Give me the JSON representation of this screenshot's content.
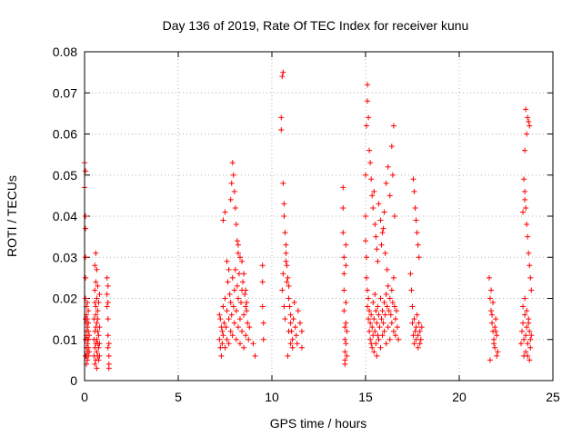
{
  "chart_data": {
    "type": "scatter",
    "title": "Day 136 of 2019, Rate Of TEC Index for receiver kunu",
    "xlabel": "GPS time / hours",
    "ylabel": "ROTI / TECUs",
    "xlim": [
      0,
      25
    ],
    "ylim": [
      0,
      0.08
    ],
    "x_ticks": [
      "0",
      "5",
      "10",
      "15",
      "20",
      "25"
    ],
    "y_ticks": [
      "0",
      "0.01",
      "0.02",
      "0.03",
      "0.04",
      "0.05",
      "0.06",
      "0.07",
      "0.08"
    ],
    "x_tick_values": [
      0,
      5,
      10,
      15,
      20,
      25
    ],
    "y_tick_values": [
      0,
      0.01,
      0.02,
      0.03,
      0.04,
      0.05,
      0.06,
      0.07,
      0.08
    ],
    "grid": true,
    "marker": "+",
    "color": "#ff0000",
    "series": [
      {
        "x": [
          0.0,
          0.0,
          0.05,
          0.05,
          0.05,
          0.05,
          0.05,
          0.05,
          0.05,
          0.05,
          0.05,
          0.1,
          0.1,
          0.1,
          0.1,
          0.1,
          0.1,
          0.1,
          0.1,
          0.15,
          0.15,
          0.15,
          0.15,
          0.15,
          0.15,
          0.15,
          0.2,
          0.2,
          0.2,
          0.2,
          0.2,
          0.2,
          0.25,
          0.25,
          0.5,
          0.5,
          0.5,
          0.55,
          0.55,
          0.55,
          0.55,
          0.55,
          0.55,
          0.6,
          0.6,
          0.6,
          0.6,
          0.6,
          0.6,
          0.6,
          0.65,
          0.65,
          0.65,
          0.65,
          0.65,
          0.65,
          0.7,
          0.7,
          0.7,
          0.7,
          0.7,
          0.7,
          0.75,
          0.75,
          0.75,
          0.75,
          0.8,
          0.8,
          0.8,
          0.8,
          1.2,
          1.2,
          1.2,
          1.25,
          1.25,
          1.25,
          1.25,
          1.25,
          1.3,
          1.3,
          1.3,
          1.3,
          7.2,
          7.2,
          7.25,
          7.25,
          7.3,
          7.3,
          7.35,
          7.35,
          7.4,
          7.4,
          7.45,
          7.5,
          7.5,
          7.55,
          7.6,
          7.6,
          7.65,
          7.7,
          7.7,
          7.75,
          7.8,
          7.8,
          7.85,
          7.9,
          7.9,
          7.95,
          8.0,
          8.0,
          8.05,
          8.1,
          8.1,
          8.15,
          8.2,
          8.2,
          8.25,
          8.3,
          8.3,
          8.35,
          8.4,
          8.4,
          8.45,
          8.5,
          8.5,
          8.55,
          8.6,
          8.6,
          8.65,
          8.7,
          8.75,
          8.8,
          9.0,
          9.1,
          7.9,
          7.95,
          8.0,
          8.05,
          8.1,
          8.15,
          8.2,
          7.85,
          7.8,
          7.5,
          7.4,
          7.6,
          7.7,
          8.3,
          8.5,
          8.6,
          8.65,
          8.4,
          8.2,
          9.5,
          9.5,
          9.5,
          9.55,
          9.55,
          10.5,
          10.5,
          10.55,
          10.6,
          10.6,
          10.65,
          10.65,
          10.7,
          10.75,
          10.75,
          10.8,
          10.85,
          10.9,
          10.9,
          10.95,
          11.0,
          11.0,
          11.05,
          11.1,
          11.1,
          11.15,
          11.2,
          11.25,
          11.3,
          11.35,
          11.4,
          11.5,
          11.6,
          11.6,
          10.55,
          10.6,
          10.65,
          10.7,
          10.9,
          11.0,
          10.8,
          10.75,
          10.85,
          13.8,
          13.8,
          13.8,
          13.85,
          13.85,
          13.85,
          13.85,
          13.9,
          13.9,
          13.9,
          13.9,
          13.9,
          13.95,
          13.95,
          13.95,
          13.95,
          13.95,
          14.0,
          14.0,
          15.0,
          15.0,
          15.05,
          15.05,
          15.1,
          15.1,
          15.15,
          15.15,
          15.2,
          15.2,
          15.25,
          15.25,
          15.3,
          15.3,
          15.35,
          15.35,
          15.4,
          15.4,
          15.45,
          15.45,
          15.5,
          15.5,
          15.55,
          15.55,
          15.6,
          15.6,
          15.65,
          15.65,
          15.7,
          15.7,
          15.75,
          15.8,
          15.8,
          15.85,
          15.9,
          15.9,
          15.95,
          16.0,
          16.0,
          16.05,
          16.1,
          16.1,
          16.15,
          16.2,
          16.2,
          16.25,
          16.3,
          16.3,
          16.35,
          16.4,
          16.4,
          16.45,
          16.5,
          16.5,
          16.55,
          16.6,
          16.6,
          16.65,
          16.7,
          16.75,
          15.0,
          15.05,
          15.1,
          15.1,
          15.15,
          15.2,
          15.25,
          15.3,
          15.35,
          15.4,
          15.45,
          15.5,
          15.55,
          15.6,
          15.65,
          15.7,
          15.8,
          15.9,
          16.0,
          16.1,
          16.2,
          16.3,
          16.4,
          16.45,
          16.5,
          16.55,
          15.85,
          15.95,
          16.05,
          16.15,
          17.4,
          17.45,
          17.5,
          17.5,
          17.55,
          17.6,
          17.6,
          17.65,
          17.7,
          17.7,
          17.75,
          17.8,
          17.8,
          17.85,
          17.9,
          17.9,
          17.95,
          18.0,
          17.55,
          17.6,
          17.65,
          17.7,
          17.75,
          17.8,
          17.85,
          21.6,
          21.65,
          21.7,
          21.75,
          21.8,
          21.85,
          21.9,
          21.95,
          22.0,
          22.0,
          21.7,
          21.8,
          21.9,
          21.75,
          21.85,
          21.95,
          22.05,
          21.65,
          23.3,
          23.35,
          23.4,
          23.45,
          23.5,
          23.55,
          23.6,
          23.65,
          23.7,
          23.75,
          23.8,
          23.85,
          23.4,
          23.5,
          23.6,
          23.7,
          23.8,
          23.45,
          23.55,
          23.65,
          23.75,
          23.45,
          23.5,
          23.55,
          23.6,
          23.65,
          23.7,
          23.75,
          23.8,
          23.85,
          23.5,
          23.6,
          23.7,
          23.55,
          23.65,
          23.75,
          23.4,
          23.5
        ],
        "y": [
          0.053,
          0.047,
          0.051,
          0.04,
          0.037,
          0.03,
          0.025,
          0.02,
          0.015,
          0.01,
          0.006,
          0.018,
          0.014,
          0.011,
          0.008,
          0.006,
          0.004,
          0.012,
          0.016,
          0.019,
          0.013,
          0.01,
          0.007,
          0.005,
          0.009,
          0.015,
          0.017,
          0.012,
          0.008,
          0.006,
          0.014,
          0.01,
          0.011,
          0.007,
          0.015,
          0.01,
          0.006,
          0.019,
          0.012,
          0.008,
          0.004,
          0.022,
          0.028,
          0.024,
          0.018,
          0.013,
          0.009,
          0.005,
          0.031,
          0.016,
          0.02,
          0.014,
          0.01,
          0.007,
          0.003,
          0.027,
          0.023,
          0.017,
          0.012,
          0.009,
          0.006,
          0.015,
          0.019,
          0.011,
          0.008,
          0.005,
          0.021,
          0.013,
          0.009,
          0.006,
          0.025,
          0.021,
          0.018,
          0.023,
          0.019,
          0.015,
          0.011,
          0.008,
          0.009,
          0.006,
          0.004,
          0.003,
          0.016,
          0.01,
          0.015,
          0.008,
          0.013,
          0.006,
          0.012,
          0.009,
          0.018,
          0.011,
          0.014,
          0.02,
          0.008,
          0.013,
          0.017,
          0.01,
          0.024,
          0.015,
          0.009,
          0.021,
          0.019,
          0.012,
          0.016,
          0.025,
          0.011,
          0.018,
          0.022,
          0.014,
          0.027,
          0.017,
          0.01,
          0.023,
          0.02,
          0.013,
          0.026,
          0.015,
          0.009,
          0.019,
          0.022,
          0.012,
          0.024,
          0.016,
          0.008,
          0.021,
          0.018,
          0.011,
          0.017,
          0.014,
          0.01,
          0.013,
          0.009,
          0.006,
          0.053,
          0.05,
          0.046,
          0.042,
          0.038,
          0.034,
          0.031,
          0.048,
          0.044,
          0.041,
          0.039,
          0.029,
          0.027,
          0.03,
          0.026,
          0.022,
          0.019,
          0.029,
          0.033,
          0.028,
          0.024,
          0.018,
          0.014,
          0.01,
          0.064,
          0.061,
          0.074,
          0.075,
          0.048,
          0.043,
          0.04,
          0.036,
          0.033,
          0.031,
          0.028,
          0.025,
          0.023,
          0.02,
          0.018,
          0.016,
          0.014,
          0.012,
          0.01,
          0.008,
          0.015,
          0.019,
          0.013,
          0.011,
          0.009,
          0.017,
          0.014,
          0.012,
          0.008,
          0.022,
          0.026,
          0.018,
          0.015,
          0.012,
          0.009,
          0.024,
          0.029,
          0.006,
          0.047,
          0.042,
          0.036,
          0.03,
          0.026,
          0.022,
          0.017,
          0.013,
          0.01,
          0.007,
          0.005,
          0.004,
          0.033,
          0.028,
          0.019,
          0.014,
          0.009,
          0.012,
          0.006,
          0.04,
          0.034,
          0.03,
          0.025,
          0.022,
          0.018,
          0.02,
          0.015,
          0.017,
          0.012,
          0.014,
          0.01,
          0.016,
          0.009,
          0.013,
          0.008,
          0.019,
          0.011,
          0.015,
          0.007,
          0.021,
          0.012,
          0.017,
          0.009,
          0.014,
          0.006,
          0.018,
          0.011,
          0.016,
          0.01,
          0.013,
          0.02,
          0.008,
          0.015,
          0.017,
          0.011,
          0.014,
          0.019,
          0.012,
          0.016,
          0.021,
          0.009,
          0.018,
          0.023,
          0.013,
          0.017,
          0.02,
          0.01,
          0.016,
          0.022,
          0.014,
          0.019,
          0.025,
          0.012,
          0.018,
          0.015,
          0.011,
          0.017,
          0.013,
          0.01,
          0.05,
          0.062,
          0.072,
          0.068,
          0.064,
          0.056,
          0.053,
          0.049,
          0.045,
          0.042,
          0.046,
          0.038,
          0.035,
          0.032,
          0.029,
          0.043,
          0.039,
          0.036,
          0.041,
          0.048,
          0.052,
          0.045,
          0.057,
          0.05,
          0.062,
          0.04,
          0.033,
          0.037,
          0.031,
          0.027,
          0.026,
          0.022,
          0.018,
          0.014,
          0.011,
          0.009,
          0.015,
          0.012,
          0.01,
          0.013,
          0.016,
          0.011,
          0.008,
          0.014,
          0.012,
          0.009,
          0.01,
          0.013,
          0.049,
          0.046,
          0.042,
          0.039,
          0.036,
          0.033,
          0.03,
          0.025,
          0.02,
          0.017,
          0.014,
          0.012,
          0.01,
          0.008,
          0.015,
          0.011,
          0.006,
          0.022,
          0.019,
          0.013,
          0.016,
          0.009,
          0.012,
          0.007,
          0.005,
          0.009,
          0.012,
          0.014,
          0.01,
          0.016,
          0.011,
          0.013,
          0.009,
          0.015,
          0.012,
          0.008,
          0.011,
          0.018,
          0.02,
          0.017,
          0.014,
          0.01,
          0.006,
          0.007,
          0.006,
          0.005,
          0.049,
          0.046,
          0.042,
          0.038,
          0.035,
          0.031,
          0.028,
          0.025,
          0.022,
          0.056,
          0.06,
          0.063,
          0.066,
          0.064,
          0.062,
          0.041,
          0.044
        ]
      }
    ]
  }
}
